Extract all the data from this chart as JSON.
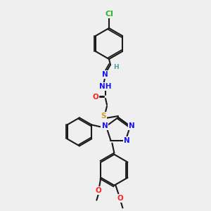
{
  "bg_color": "#efefef",
  "bond_color": "#1a1a1a",
  "cl_color": "#2db52d",
  "n_color": "#1414ff",
  "o_color": "#ff2020",
  "s_color": "#c8a020",
  "lw": 1.5,
  "dlw": 1.3,
  "fs": 7.5,
  "atoms": {
    "Cl": {
      "label": "Cl",
      "color": "#2db52d"
    },
    "N": {
      "label": "N",
      "color": "#1414ff"
    },
    "O": {
      "label": "O",
      "color": "#ff2020"
    },
    "S": {
      "label": "S",
      "color": "#c8a020"
    },
    "H": {
      "label": "H",
      "color": "#5599aa"
    }
  }
}
